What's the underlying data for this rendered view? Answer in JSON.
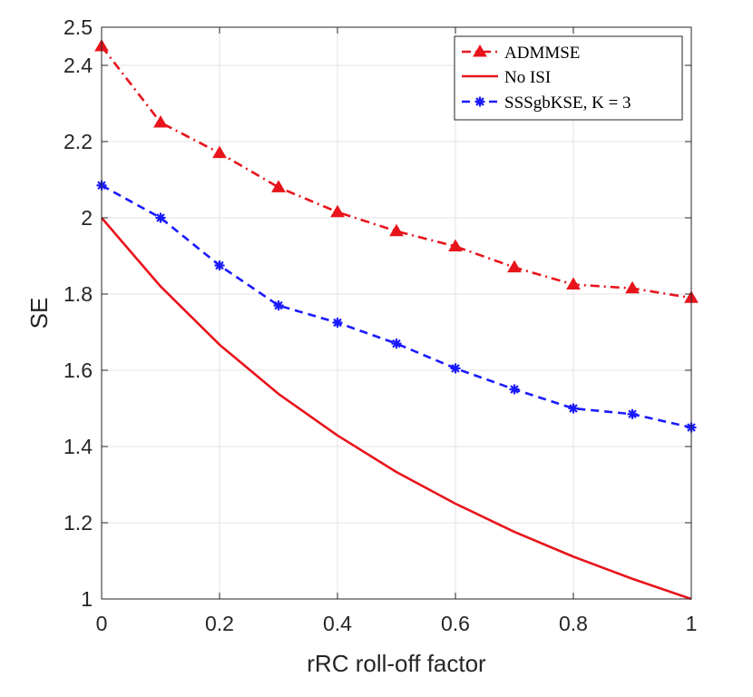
{
  "chart_data": {
    "type": "line",
    "title": "",
    "xlabel": "rRC roll-off factor",
    "ylabel": "SE",
    "xlim": [
      0,
      1
    ],
    "ylim": [
      1,
      2.5
    ],
    "grid": true,
    "legend_position": "top-right",
    "x_ticks": [
      0,
      0.2,
      0.4,
      0.6,
      0.8,
      1
    ],
    "x_tick_labels": [
      "0",
      "0.2",
      "0.4",
      "0.6",
      "0.8",
      "1"
    ],
    "y_ticks": [
      1,
      1.2,
      1.4,
      1.6,
      1.8,
      2,
      2.2,
      2.4,
      2.5
    ],
    "y_tick_labels": [
      "1",
      "1.2",
      "1.4",
      "1.6",
      "1.8",
      "2",
      "2.2",
      "2.4",
      "2.5"
    ],
    "x": [
      0,
      0.1,
      0.2,
      0.3,
      0.4,
      0.5,
      0.6,
      0.7,
      0.8,
      0.9,
      1.0
    ],
    "series": [
      {
        "name": "ADMMSE",
        "legend_label": "ADMMSE",
        "color": "#e8141c",
        "line_style": "dash-dot",
        "marker": "triangle",
        "values": [
          2.45,
          2.25,
          2.17,
          2.08,
          2.015,
          1.965,
          1.925,
          1.87,
          1.825,
          1.815,
          1.79
        ]
      },
      {
        "name": "No ISI",
        "legend_label": "No ISI",
        "color": "#e8141c",
        "line_style": "solid",
        "marker": "none",
        "values": [
          2.0,
          1.82,
          1.667,
          1.538,
          1.429,
          1.333,
          1.25,
          1.176,
          1.111,
          1.053,
          1.0
        ]
      },
      {
        "name": "SSSgbKSE, K = 3",
        "legend_label": "SSSgbKSE, K = 3",
        "color": "#1a1aff",
        "line_style": "dashed",
        "marker": "asterisk",
        "values": [
          2.085,
          2.0,
          1.875,
          1.77,
          1.725,
          1.67,
          1.605,
          1.55,
          1.5,
          1.485,
          1.45
        ]
      }
    ]
  }
}
